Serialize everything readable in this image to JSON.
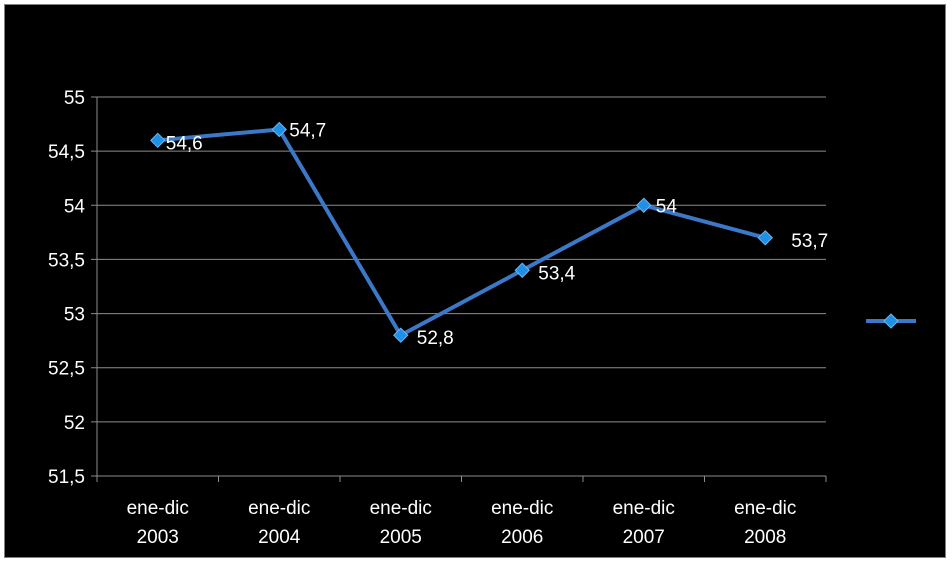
{
  "chart_data": {
    "type": "line",
    "title": "",
    "xlabel": "",
    "ylabel": "",
    "categories": [
      [
        "ene-dic",
        "2003"
      ],
      [
        "ene-dic",
        "2004"
      ],
      [
        "ene-dic",
        "2005"
      ],
      [
        "ene-dic",
        "2006"
      ],
      [
        "ene-dic",
        "2007"
      ],
      [
        "ene-dic",
        "2008"
      ]
    ],
    "series": [
      {
        "values": [
          54.6,
          54.7,
          52.8,
          53.4,
          54.0,
          53.7
        ],
        "labels": [
          "54,6",
          "54,7",
          "52,8",
          "53,4",
          "54",
          "53,7"
        ],
        "color": "#3c78c8",
        "marker_color": "#1e90e6"
      }
    ],
    "ylim": [
      51.5,
      55
    ],
    "yticks": [
      "51,5",
      "52",
      "52,5",
      "53",
      "53,5",
      "54",
      "54,5",
      "55"
    ],
    "grid": true,
    "legend": "right"
  }
}
